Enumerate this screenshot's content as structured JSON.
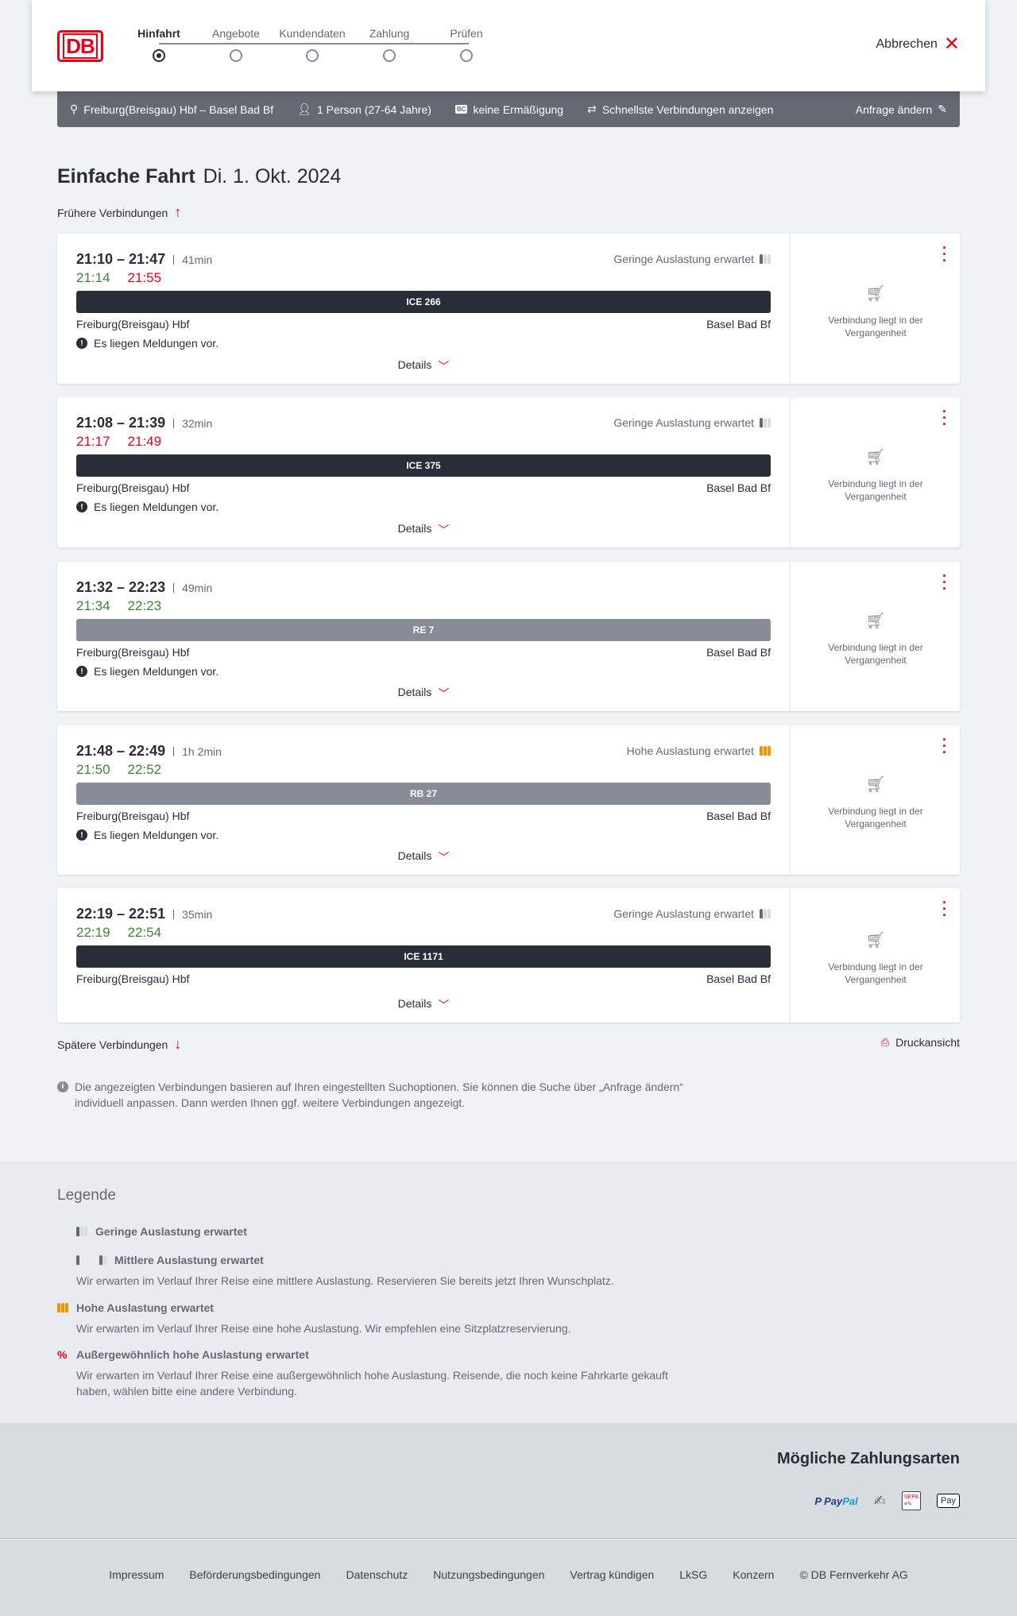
{
  "header": {
    "logo": "DB",
    "steps": [
      "Hinfahrt",
      "Angebote",
      "Kundendaten",
      "Zahlung",
      "Prüfen"
    ],
    "active_step": 0,
    "cancel": "Abbrechen"
  },
  "summary": {
    "route": "Freiburg(Breisgau) Hbf – Basel Bad Bf",
    "travellers": "1 Person (27-64 Jahre)",
    "bc_badge": "BC",
    "discount": "keine Ermäßigung",
    "fastest": "Schnellste Verbindungen anzeigen",
    "change": "Anfrage ändern"
  },
  "title": {
    "type": "Einfache Fahrt",
    "date": "Di. 1. Okt. 2024"
  },
  "earlier": "Frühere Verbindungen",
  "later": "Spätere Verbindungen",
  "print": "Druckansicht",
  "colors": {
    "accent": "#ec0016",
    "on_time": "#408335",
    "ice_bar": "#282d37",
    "regional_bar": "#878c96",
    "high_load": "#f39200"
  },
  "connections": [
    {
      "times": "21:10 – 21:47",
      "duration": "41min",
      "rt_dep": "21:14",
      "rt_dep_late": false,
      "rt_arr": "21:55",
      "rt_arr_late": true,
      "load": "Geringe Auslastung erwartet",
      "load_level": "low",
      "train": "ICE 266",
      "train_kind": "ice",
      "from": "Freiburg(Breisgau) Hbf",
      "to": "Basel Bad Bf",
      "message": "Es liegen Meldungen vor.",
      "details": "Details",
      "status": "Verbindung liegt in der Vergangenheit"
    },
    {
      "times": "21:08 – 21:39",
      "duration": "32min",
      "rt_dep": "21:17",
      "rt_dep_late": true,
      "rt_arr": "21:49",
      "rt_arr_late": true,
      "load": "Geringe Auslastung erwartet",
      "load_level": "low",
      "train": "ICE 375",
      "train_kind": "ice",
      "from": "Freiburg(Breisgau) Hbf",
      "to": "Basel Bad Bf",
      "message": "Es liegen Meldungen vor.",
      "details": "Details",
      "status": "Verbindung liegt in der Vergangenheit"
    },
    {
      "times": "21:32 – 22:23",
      "duration": "49min",
      "rt_dep": "21:34",
      "rt_dep_late": false,
      "rt_arr": "22:23",
      "rt_arr_late": false,
      "load": "",
      "load_level": "",
      "train": "RE 7",
      "train_kind": "regional",
      "from": "Freiburg(Breisgau) Hbf",
      "to": "Basel Bad Bf",
      "message": "Es liegen Meldungen vor.",
      "details": "Details",
      "status": "Verbindung liegt in der Vergangenheit"
    },
    {
      "times": "21:48 – 22:49",
      "duration": "1h 2min",
      "rt_dep": "21:50",
      "rt_dep_late": false,
      "rt_arr": "22:52",
      "rt_arr_late": false,
      "load": "Hohe Auslastung erwartet",
      "load_level": "high",
      "train": "RB 27",
      "train_kind": "regional",
      "from": "Freiburg(Breisgau) Hbf",
      "to": "Basel Bad Bf",
      "message": "Es liegen Meldungen vor.",
      "details": "Details",
      "status": "Verbindung liegt in der Vergangenheit"
    },
    {
      "times": "22:19 – 22:51",
      "duration": "35min",
      "rt_dep": "22:19",
      "rt_dep_late": false,
      "rt_arr": "22:54",
      "rt_arr_late": false,
      "load": "Geringe Auslastung erwartet",
      "load_level": "low",
      "train": "ICE 1171",
      "train_kind": "ice",
      "from": "Freiburg(Breisgau) Hbf",
      "to": "Basel Bad Bf",
      "message": "",
      "details": "Details",
      "status": "Verbindung liegt in der Vergangenheit"
    }
  ],
  "info": "Die angezeigten Verbindungen basieren auf Ihren eingestellten Suchoptionen. Sie können die Suche über „Anfrage ändern“ individuell anpassen. Dann werden Ihnen ggf. weitere Verbindungen angezeigt.",
  "legend": {
    "title": "Legende",
    "items": [
      {
        "label": "Geringe Auslastung erwartet",
        "text": "",
        "level": "low"
      },
      {
        "label": "Mittlere Auslastung erwartet",
        "text": "Wir erwarten im Verlauf Ihrer Reise eine mittlere Auslastung. Reservieren Sie bereits jetzt Ihren Wunschplatz.",
        "level": "medium"
      },
      {
        "label": "Hohe Auslastung erwartet",
        "text": "Wir erwarten im Verlauf Ihrer Reise eine hohe Auslastung. Wir empfehlen eine Sitzplatzreservierung.",
        "level": "high"
      },
      {
        "label": "Außergewöhnlich hohe Auslastung erwartet",
        "text": "Wir erwarten im Verlauf Ihrer Reise eine außergewöhnlich hohe Auslastung. Reisende, die noch keine Fahrkarte gekauft haben, wählen bitte eine andere Verbindung.",
        "level": "extreme"
      }
    ]
  },
  "payment": {
    "title": "Mögliche Zahlungsarten",
    "methods": [
      {
        "name": "PayPal",
        "a": "Pay",
        "b": "Pal"
      },
      {
        "name": "credit-card-icon"
      },
      {
        "name": "SEPA",
        "label": "SEPA"
      },
      {
        "name": "Apple Pay",
        "label": "Pay"
      }
    ]
  },
  "footer": [
    "Impressum",
    "Beförderungsbedingungen",
    "Datenschutz",
    "Nutzungsbedingungen",
    "Vertrag kündigen",
    "LkSG",
    "Konzern",
    "© DB Fernverkehr AG"
  ]
}
